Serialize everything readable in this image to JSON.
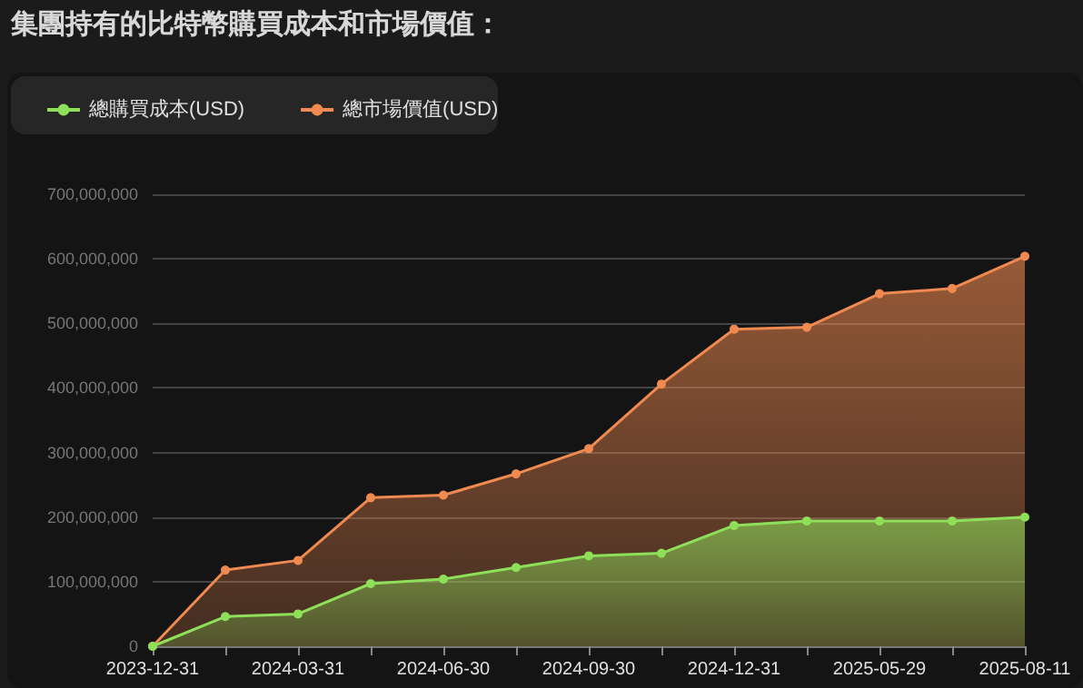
{
  "chart_data": {
    "type": "area",
    "title": "集團持有的比特幣購買成本和市場價值：",
    "categories": [
      "2023-12-31",
      null,
      "2024-03-31",
      null,
      "2024-06-30",
      null,
      "2024-09-30",
      null,
      "2024-12-31",
      null,
      "2025-05-29",
      null,
      "2025-08-11"
    ],
    "series": [
      {
        "name": "總購買成本(USD)",
        "color": "#8ee05a",
        "values": [
          0,
          46000000,
          50000000,
          97000000,
          104000000,
          122000000,
          140000000,
          144000000,
          187000000,
          194000000,
          194000000,
          194000000,
          200000000
        ]
      },
      {
        "name": "總市場價值(USD)",
        "color": "#f08a50",
        "values": [
          0,
          118000000,
          133000000,
          230000000,
          234000000,
          267000000,
          306000000,
          406000000,
          491000000,
          494000000,
          546000000,
          554000000,
          604000000
        ]
      }
    ],
    "ylim": [
      0,
      700000000
    ],
    "yticks": [
      0,
      {
        "value": 100000000,
        "label": "100,000,000"
      },
      {
        "value": 200000000,
        "label": "200,000,000"
      },
      {
        "value": 300000000,
        "label": "300,000,000"
      },
      {
        "value": 400000000,
        "label": "400,000,000"
      },
      {
        "value": 500000000,
        "label": "500,000,000"
      },
      {
        "value": 600000000,
        "label": "600,000,000"
      },
      {
        "value": 700000000,
        "label": "700,000,000"
      }
    ],
    "grid": "y",
    "legend": "top left",
    "marker": "circle",
    "line_style": "solid"
  }
}
